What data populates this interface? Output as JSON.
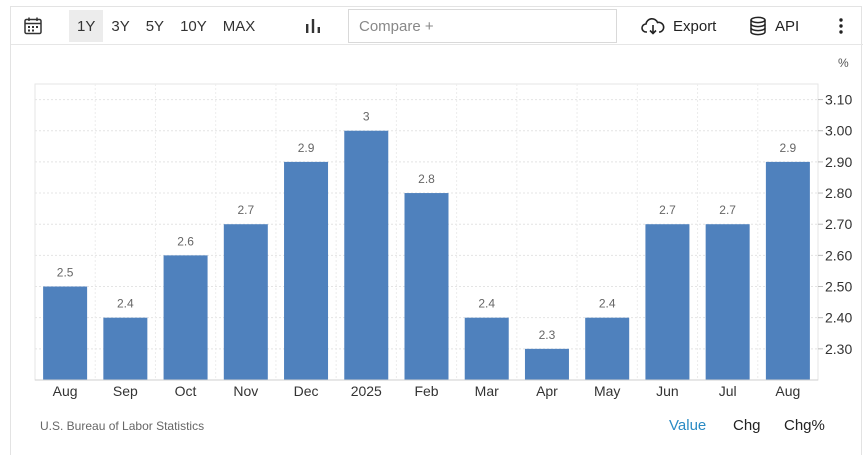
{
  "toolbar": {
    "calendar_icon": "calendar-icon",
    "ranges": [
      {
        "label": "1Y",
        "active": true
      },
      {
        "label": "3Y",
        "active": false
      },
      {
        "label": "5Y",
        "active": false
      },
      {
        "label": "10Y",
        "active": false
      },
      {
        "label": "MAX",
        "active": false
      }
    ],
    "chart_type_icon": "bar-chart-icon",
    "compare_placeholder": "Compare +",
    "export_label": "Export",
    "api_label": "API",
    "more_icon": "more-vertical-icon"
  },
  "chart_data": {
    "type": "bar",
    "categories": [
      "Aug",
      "Sep",
      "Oct",
      "Nov",
      "Dec",
      "2025",
      "Feb",
      "Mar",
      "Apr",
      "May",
      "Jun",
      "Jul",
      "Aug"
    ],
    "values": [
      2.5,
      2.4,
      2.6,
      2.7,
      2.9,
      3,
      2.8,
      2.4,
      2.3,
      2.4,
      2.7,
      2.7,
      2.9
    ],
    "data_labels": [
      "2.5",
      "2.4",
      "2.6",
      "2.7",
      "2.9",
      "3",
      "2.8",
      "2.4",
      "2.3",
      "2.4",
      "2.7",
      "2.7",
      "2.9"
    ],
    "y_ticks": [
      "2.30",
      "2.40",
      "2.50",
      "2.60",
      "2.70",
      "2.80",
      "2.90",
      "3.00",
      "3.10"
    ],
    "unit": "%",
    "ylim": [
      2.2,
      3.15
    ],
    "y_axis_position": "right",
    "grid": true,
    "bar_color": "#4f81bd",
    "title": "",
    "xlabel": "",
    "ylabel": ""
  },
  "source": "U.S. Bureau of Labor Statistics",
  "modes": [
    {
      "label": "Value",
      "active": true
    },
    {
      "label": "Chg",
      "active": false
    },
    {
      "label": "Chg%",
      "active": false
    }
  ],
  "colors": {
    "accent": "#2a8bc4",
    "bar": "#4f81bd"
  }
}
